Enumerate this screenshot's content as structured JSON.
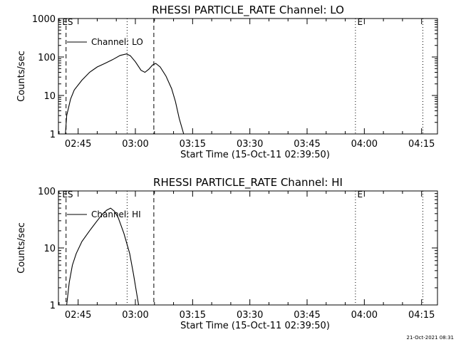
{
  "footer": {
    "timestamp": "21-Oct-2021 08:31"
  },
  "chart_data": [
    {
      "type": "line",
      "title": "RHESSI PARTICLE_RATE Channel: LO",
      "xlabel": "Start Time (15-Oct-11 02:39:50)",
      "ylabel": "Counts/sec",
      "yscale": "log",
      "xlim": [
        "02:39:50",
        "04:19:10"
      ],
      "ylim": [
        1,
        1000
      ],
      "x_ticks": [
        "02:45",
        "03:00",
        "03:15",
        "03:30",
        "03:45",
        "04:00",
        "04:15"
      ],
      "y_ticks": [
        "1",
        "10",
        "100",
        "1000"
      ],
      "legend": {
        "position": "top-left",
        "entries": [
          "Channel: LO"
        ]
      },
      "markers": [
        {
          "time": "02:41:50",
          "style": "dashed"
        },
        {
          "time": "02:57:50",
          "style": "dotted"
        },
        {
          "time": "03:04:50",
          "style": "dashed"
        },
        {
          "time": "03:57:40",
          "style": "dotted"
        },
        {
          "time": "04:15:20",
          "style": "dotted"
        }
      ],
      "annotations": [
        {
          "text": "ES",
          "time": "02:40:50"
        },
        {
          "text": "E",
          "time": "03:58:10"
        }
      ],
      "series": [
        {
          "name": "Channel: LO",
          "points": [
            [
              "02:41:40",
              1
            ],
            [
              "02:42:00",
              3
            ],
            [
              "02:43:00",
              8
            ],
            [
              "02:44:00",
              14
            ],
            [
              "02:46:00",
              25
            ],
            [
              "02:48:00",
              40
            ],
            [
              "02:50:00",
              55
            ],
            [
              "02:52:00",
              68
            ],
            [
              "02:54:00",
              85
            ],
            [
              "02:56:00",
              110
            ],
            [
              "02:57:40",
              120
            ],
            [
              "02:58:40",
              108
            ],
            [
              "03:00:00",
              75
            ],
            [
              "03:01:30",
              45
            ],
            [
              "03:02:30",
              40
            ],
            [
              "03:03:30",
              48
            ],
            [
              "03:04:30",
              62
            ],
            [
              "03:05:20",
              68
            ],
            [
              "03:06:30",
              55
            ],
            [
              "03:08:00",
              32
            ],
            [
              "03:09:30",
              15
            ],
            [
              "03:10:30",
              7
            ],
            [
              "03:11:30",
              2.5
            ],
            [
              "03:12:40",
              1
            ]
          ]
        }
      ]
    },
    {
      "type": "line",
      "title": "RHESSI PARTICLE_RATE Channel: HI",
      "xlabel": "Start Time (15-Oct-11 02:39:50)",
      "ylabel": "Counts/sec",
      "yscale": "log",
      "xlim": [
        "02:39:50",
        "04:19:10"
      ],
      "ylim": [
        1,
        100
      ],
      "x_ticks": [
        "02:45",
        "03:00",
        "03:15",
        "03:30",
        "03:45",
        "04:00",
        "04:15"
      ],
      "y_ticks": [
        "1",
        "10",
        "100"
      ],
      "legend": {
        "position": "top-left",
        "entries": [
          "Channel: HI"
        ]
      },
      "markers": [
        {
          "time": "02:41:50",
          "style": "dashed"
        },
        {
          "time": "02:57:50",
          "style": "dotted"
        },
        {
          "time": "03:04:50",
          "style": "dashed"
        },
        {
          "time": "03:57:40",
          "style": "dotted"
        },
        {
          "time": "04:15:20",
          "style": "dotted"
        }
      ],
      "annotations": [
        {
          "text": "ES",
          "time": "02:40:50"
        },
        {
          "text": "E",
          "time": "03:58:10"
        }
      ],
      "series": [
        {
          "name": "Channel: HI",
          "points": [
            [
              "02:42:00",
              1
            ],
            [
              "02:42:40",
              2.5
            ],
            [
              "02:43:30",
              5
            ],
            [
              "02:44:30",
              8
            ],
            [
              "02:46:00",
              13
            ],
            [
              "02:48:00",
              20
            ],
            [
              "02:50:00",
              30
            ],
            [
              "02:51:30",
              40
            ],
            [
              "02:52:30",
              46
            ],
            [
              "02:53:30",
              50
            ],
            [
              "02:54:30",
              44
            ],
            [
              "02:55:30",
              34
            ],
            [
              "02:57:00",
              18
            ],
            [
              "02:58:30",
              8
            ],
            [
              "02:59:30",
              3.5
            ],
            [
              "03:00:20",
              1.6
            ],
            [
              "03:00:50",
              1
            ]
          ]
        }
      ]
    }
  ]
}
